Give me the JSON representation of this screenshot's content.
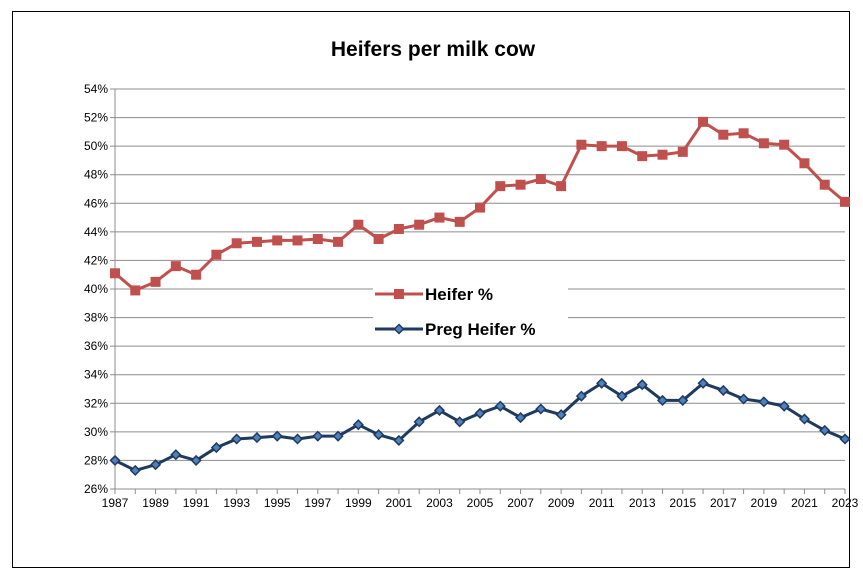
{
  "chart_data": {
    "type": "line",
    "title": "Heifers per milk cow",
    "xlabel": "",
    "ylabel": "",
    "x": [
      1987,
      1988,
      1989,
      1990,
      1991,
      1992,
      1993,
      1994,
      1995,
      1996,
      1997,
      1998,
      1999,
      2000,
      2001,
      2002,
      2003,
      2004,
      2005,
      2006,
      2007,
      2008,
      2009,
      2010,
      2011,
      2012,
      2013,
      2014,
      2015,
      2016,
      2017,
      2018,
      2019,
      2020,
      2021,
      2022,
      2023
    ],
    "x_tick_labels": [
      "1987",
      "1989",
      "1991",
      "1993",
      "1995",
      "1997",
      "1999",
      "2001",
      "2003",
      "2005",
      "2007",
      "2009",
      "2011",
      "2013",
      "2015",
      "2017",
      "2019",
      "2021",
      "2023"
    ],
    "y_tick_labels": [
      "26%",
      "28%",
      "30%",
      "32%",
      "34%",
      "36%",
      "38%",
      "40%",
      "42%",
      "44%",
      "46%",
      "48%",
      "50%",
      "52%",
      "54%"
    ],
    "ylim": [
      26,
      54
    ],
    "grid": true,
    "legend_position": "center",
    "series": [
      {
        "name": "Heifer %",
        "color": "#C0504D",
        "marker": "square",
        "values": [
          41.1,
          39.9,
          40.5,
          41.6,
          41.0,
          42.4,
          43.2,
          43.3,
          43.4,
          43.4,
          43.5,
          43.3,
          44.5,
          43.5,
          44.2,
          44.5,
          45.0,
          44.7,
          45.7,
          47.2,
          47.3,
          47.7,
          47.2,
          50.1,
          50.0,
          50.0,
          49.3,
          49.4,
          49.6,
          51.7,
          50.8,
          50.9,
          50.2,
          50.1,
          48.8,
          47.3,
          46.1
        ]
      },
      {
        "name": "Preg Heifer %",
        "color": "#1F3A5F",
        "marker": "diamond",
        "values": [
          28.0,
          27.3,
          27.7,
          28.4,
          28.0,
          28.9,
          29.5,
          29.6,
          29.7,
          29.5,
          29.7,
          29.7,
          30.5,
          29.8,
          29.4,
          30.7,
          31.5,
          30.7,
          31.3,
          31.8,
          31.0,
          31.6,
          31.2,
          32.5,
          33.4,
          32.5,
          33.3,
          32.2,
          32.2,
          33.4,
          32.9,
          32.3,
          32.1,
          31.8,
          30.9,
          30.1,
          29.5
        ]
      }
    ]
  }
}
